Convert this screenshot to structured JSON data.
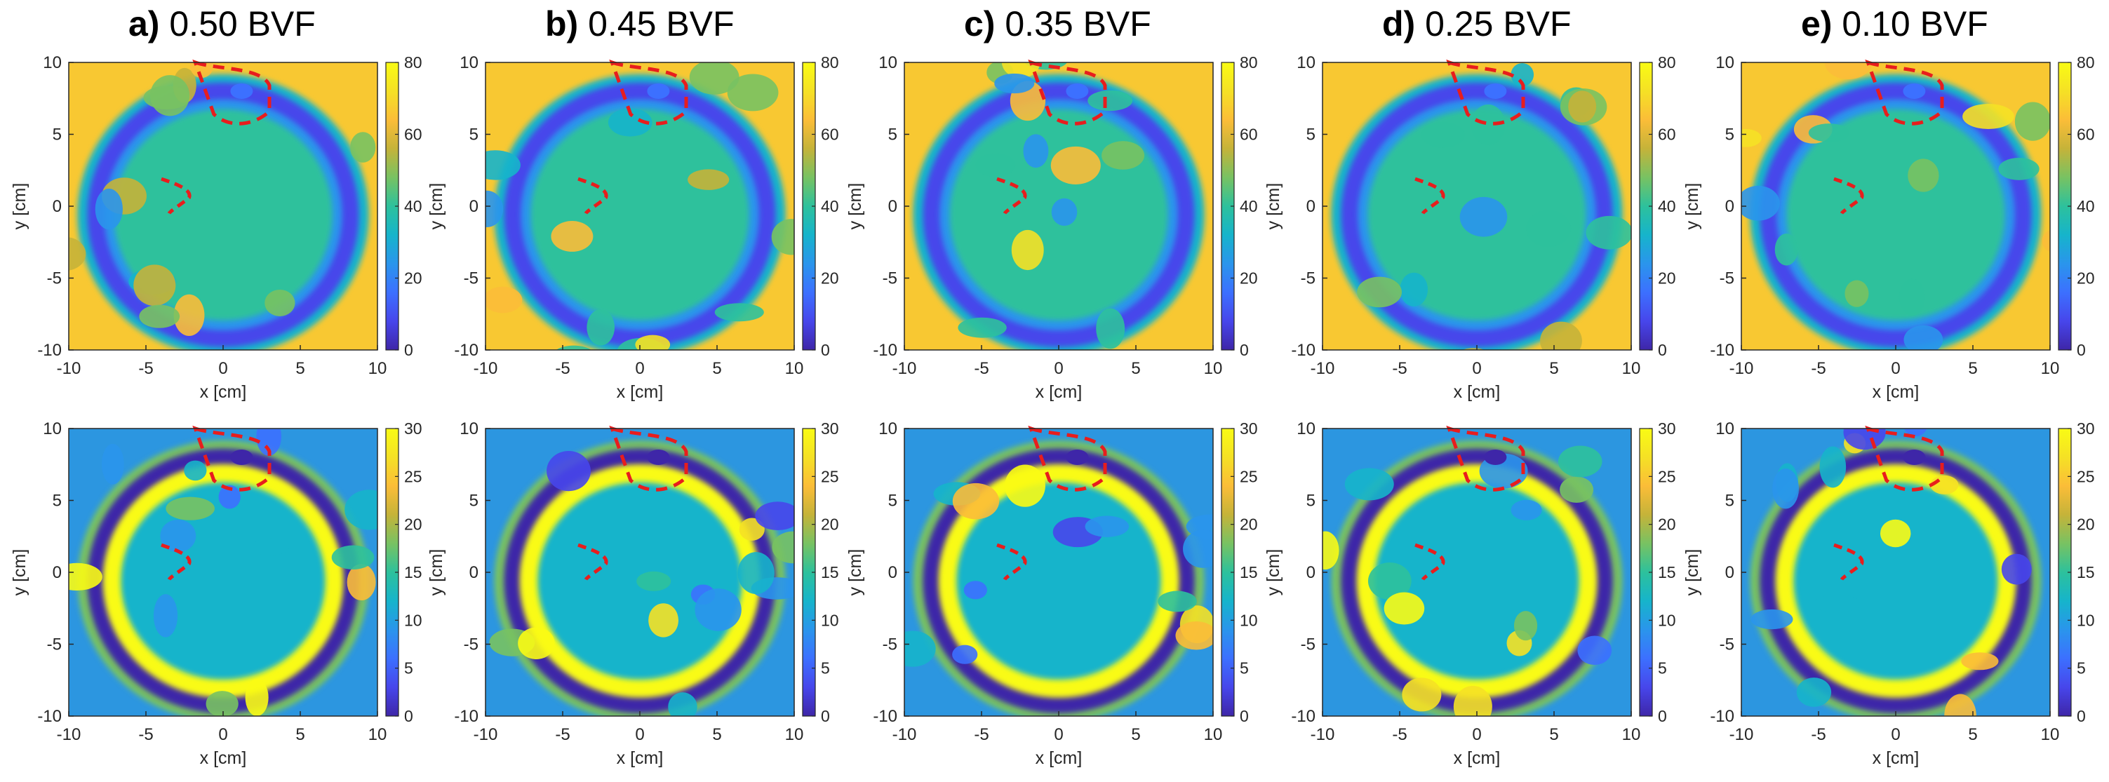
{
  "colors": {
    "map_background_top": "#f8c832",
    "map_background_bottom": "#2c96e0",
    "outline": "#e81d1d",
    "colormap": [
      "#3e26a8",
      "#4746eb",
      "#3c70ff",
      "#2a95ec",
      "#16b4cb",
      "#2dc19c",
      "#78c262",
      "#c5b339",
      "#fbbd38",
      "#f5e125",
      "#f9fb14"
    ]
  },
  "chart_data": {
    "type": "heatmap",
    "layout": "2 rows x 5 columns",
    "colormap": "parula",
    "columns": [
      {
        "letter": "a)",
        "bvf_text": "0.50 BVF",
        "bvf": 0.5
      },
      {
        "letter": "b)",
        "bvf_text": "0.45 BVF",
        "bvf": 0.45
      },
      {
        "letter": "c)",
        "bvf_text": "0.35 BVF",
        "bvf": 0.35
      },
      {
        "letter": "d)",
        "bvf_text": "0.25 BVF",
        "bvf": 0.25
      },
      {
        "letter": "e)",
        "bvf_text": "0.10 BVF",
        "bvf": 0.1
      }
    ],
    "xlabel": "x [cm]",
    "ylabel": "y [cm]",
    "xlim": [
      -10,
      10
    ],
    "ylim": [
      -10,
      10
    ],
    "xticks": [
      "-10",
      "-5",
      "0",
      "5",
      "10"
    ],
    "yticks": [
      "10",
      "5",
      "0",
      "-5",
      "-10"
    ],
    "rows": [
      {
        "row": "top",
        "colorbar_range": [
          0,
          80
        ],
        "colorbar_ticks": [
          "80",
          "60",
          "40",
          "20",
          "0"
        ]
      },
      {
        "row": "bottom",
        "colorbar_range": [
          0,
          30
        ],
        "colorbar_ticks": [
          "30",
          "25",
          "20",
          "15",
          "10",
          "5",
          "0"
        ]
      }
    ],
    "annotations": "red dashed outlines marking two regions: upper center near (1, 8) cm and left near (-3, 1) cm"
  }
}
